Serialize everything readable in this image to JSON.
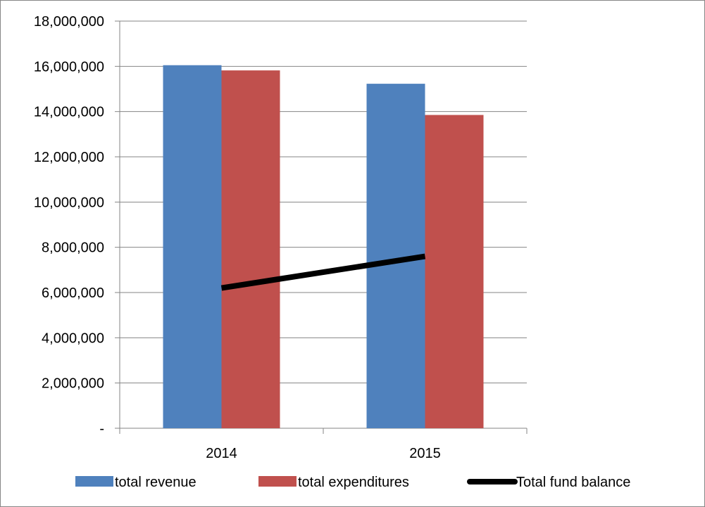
{
  "chart_data": {
    "type": "bar",
    "categories": [
      "2014",
      "2015"
    ],
    "series": [
      {
        "name": "total revenue",
        "kind": "bar",
        "color": "#4F81BD",
        "values": [
          16050000,
          15230000
        ]
      },
      {
        "name": "total expenditures",
        "kind": "bar",
        "color": "#C0504D",
        "values": [
          15820000,
          13850000
        ]
      },
      {
        "name": "Total fund balance",
        "kind": "line",
        "color": "#000000",
        "values": [
          6200000,
          7600000
        ]
      }
    ],
    "y_tick_labels": [
      "-",
      "2,000,000",
      "4,000,000",
      "6,000,000",
      "8,000,000",
      "10,000,000",
      "12,000,000",
      "14,000,000",
      "16,000,000",
      "18,000,000"
    ],
    "ylim": [
      0,
      18000000
    ],
    "y_tick_step": 2000000,
    "grid": true,
    "legend_position": "bottom",
    "title": "",
    "xlabel": "",
    "ylabel": ""
  }
}
